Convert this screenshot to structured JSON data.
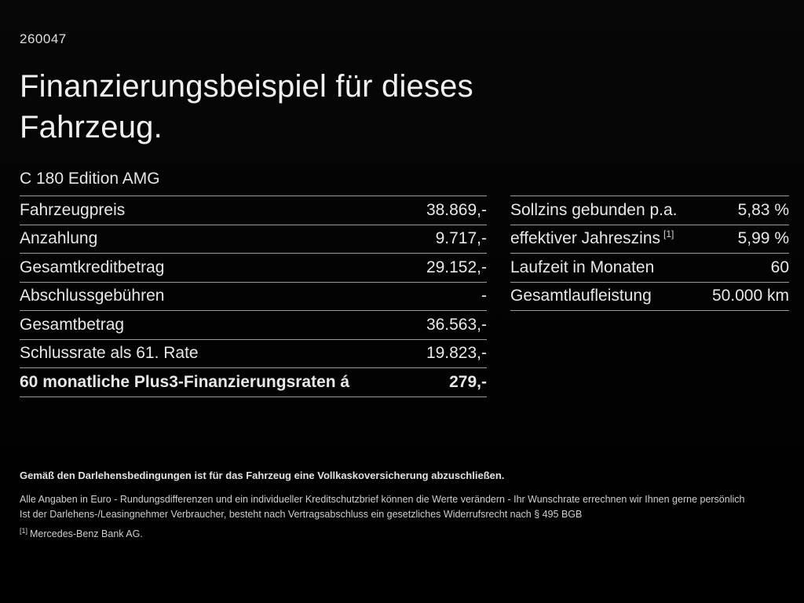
{
  "page": {
    "doc_number": "260047",
    "title": "Finanzierungsbeispiel für dieses Fahrzeug.",
    "model": "C 180 Edition AMG"
  },
  "tables": {
    "left": {
      "rows": [
        {
          "label": "Fahrzeugpreis",
          "value": "38.869,-"
        },
        {
          "label": "Anzahlung",
          "value": "9.717,-"
        },
        {
          "label": "Gesamtkreditbetrag",
          "value": "29.152,-"
        },
        {
          "label": "Abschlussgebühren",
          "value": "-"
        },
        {
          "label": "Gesamtbetrag",
          "value": "36.563,-"
        },
        {
          "label": "Schlussrate als 61. Rate",
          "value": "19.823,-"
        },
        {
          "label": "60 monatliche Plus3-Finanzierungsraten á",
          "value": "279,-"
        }
      ]
    },
    "right": {
      "rows": [
        {
          "label": "Sollzins gebunden p.a.",
          "sup": "",
          "value": "5,83 %"
        },
        {
          "label": "effektiver Jahreszins",
          "sup": "[1]",
          "value": "5,99 %"
        },
        {
          "label": "Laufzeit in Monaten",
          "sup": "",
          "value": "60"
        },
        {
          "label": "Gesamtlaufleistung",
          "sup": "",
          "value": "50.000 km"
        }
      ]
    }
  },
  "footer": {
    "line1": "Gemäß den Darlehensbedingungen ist für das Fahrzeug eine Vollkaskoversicherung abzuschließen.",
    "line2": "Alle Angaben in Euro - Rundungsdifferenzen und ein individueller Kreditschutzbrief können die Werte verändern - Ihr Wunschrate errechnen wir Ihnen gerne persönlich",
    "line3": "Ist der Darlehens-/Leasingnehmer Verbraucher, besteht nach Vertragsabschluss ein gesetzliches Widerrufsrecht nach § 495 BGB",
    "footnote_marker": "[1]",
    "footnote_text": "Mercedes-Benz Bank AG."
  },
  "colors": {
    "background": "#000000",
    "text": "#e8e8e8",
    "divider": "#9b9b9b"
  }
}
